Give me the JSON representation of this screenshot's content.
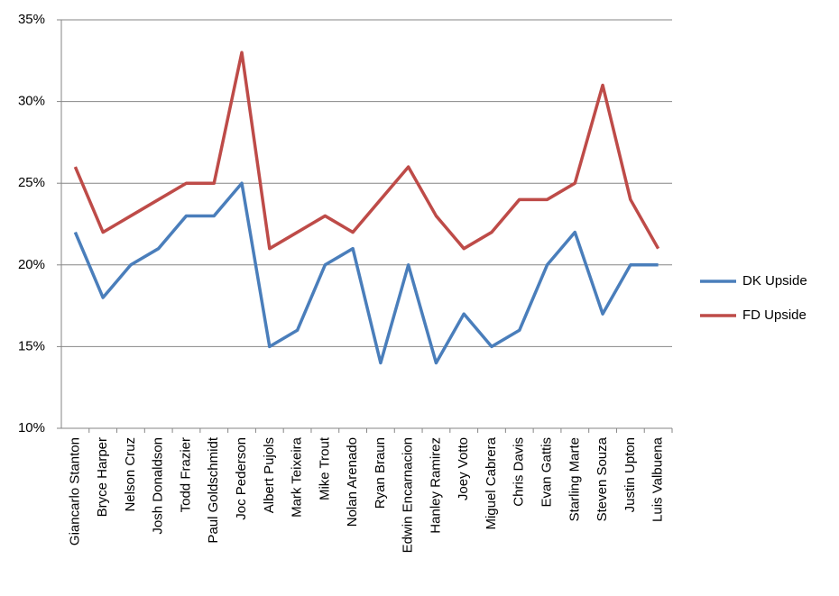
{
  "chart_data": {
    "type": "line",
    "categories": [
      "Giancarlo Stanton",
      "Bryce Harper",
      "Nelson Cruz",
      "Josh Donaldson",
      "Todd Frazier",
      "Paul Goldschmidt",
      "Joc Pederson",
      "Albert Pujols",
      "Mark Teixeira",
      "Mike Trout",
      "Nolan Arenado",
      "Ryan Braun",
      "Edwin Encarnacion",
      "Hanley Ramirez",
      "Joey Votto",
      "Miguel Cabrera",
      "Chris Davis",
      "Evan Gattis",
      "Starling Marte",
      "Steven Souza",
      "Justin Upton",
      "Luis Valbuena"
    ],
    "series": [
      {
        "name": "DK Upside",
        "color": "#4a7ebb",
        "values": [
          22,
          18,
          20,
          21,
          23,
          23,
          25,
          15,
          16,
          20,
          21,
          14,
          20,
          14,
          17,
          15,
          16,
          20,
          22,
          17,
          20,
          20
        ]
      },
      {
        "name": "FD Upside",
        "color": "#be4b48",
        "values": [
          26,
          22,
          23,
          24,
          25,
          25,
          33,
          21,
          22,
          23,
          22,
          24,
          26,
          23,
          21,
          22,
          24,
          24,
          25,
          31,
          24,
          21
        ]
      }
    ],
    "ylim": [
      10,
      35
    ],
    "yticks": [
      {
        "value": 10,
        "label": "10%"
      },
      {
        "value": 15,
        "label": "15%"
      },
      {
        "value": 20,
        "label": "20%"
      },
      {
        "value": 25,
        "label": "25%"
      },
      {
        "value": 30,
        "label": "30%"
      },
      {
        "value": 35,
        "label": "35%"
      }
    ],
    "grid": true,
    "legend": "right"
  }
}
